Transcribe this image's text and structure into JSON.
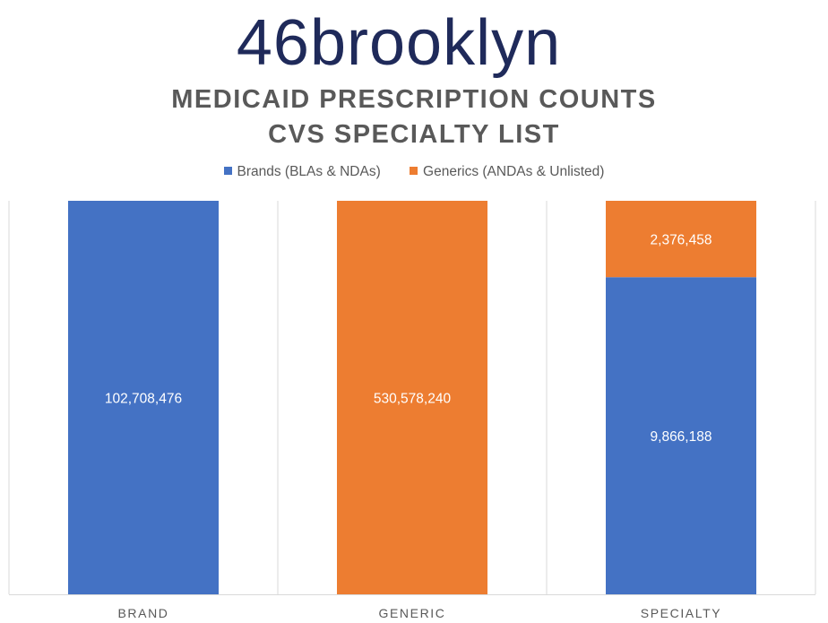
{
  "logo": {
    "text": "46brooklyn",
    "color": "#1f2a5a"
  },
  "chart_data": {
    "type": "bar",
    "stacked": true,
    "title_lines": [
      "MEDICAID PRESCRIPTION COUNTS",
      "CVS SPECIALTY LIST"
    ],
    "categories": [
      "BRAND",
      "GENERIC",
      "SPECIALTY"
    ],
    "series": [
      {
        "name": "Brands (BLAs & NDAs)",
        "color": "#4472c4",
        "values": [
          102708476,
          0,
          9866188
        ],
        "labels": [
          "102,708,476",
          "",
          "9,866,188"
        ]
      },
      {
        "name": "Generics (ANDAs & Unlisted)",
        "color": "#ed7d31",
        "values": [
          0,
          530578240,
          2376458
        ],
        "labels": [
          "",
          "530,578,240",
          "2,376,458"
        ]
      }
    ],
    "percent_stacked": true,
    "legend_position": "top",
    "grid": false
  }
}
